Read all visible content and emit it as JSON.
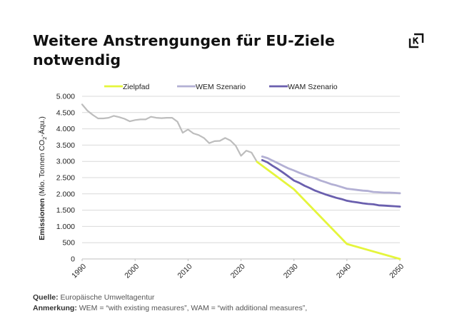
{
  "title": {
    "line1": "Weitere Anstrengungen für EU-Ziele",
    "line2": "notwendig"
  },
  "logo_icon": "k-bracket-logo-icon",
  "footer": {
    "source_label": "Quelle:",
    "source_text": "Europäische Umweltagentur",
    "note_label": "Anmerkung:",
    "note_text": "WEM = “with existing measures”, WAM = “with additional measures”,"
  },
  "colors": {
    "historical": "#bdbdbd",
    "zielpfad": "#e5f53c",
    "wem": "#b3b0d4",
    "wam": "#6a5fae",
    "grid": "#d9d9d9"
  },
  "chart_data": {
    "type": "line",
    "title": "Weitere Anstrengungen für EU-Ziele notwendig",
    "ylabel_bold": "Emissionen",
    "ylabel_rest": "(Mio. Tonnen CO",
    "ylabel_sub": "2",
    "ylabel_end": "-Äqu.)",
    "xlabel": "",
    "ylim": [
      0,
      5000
    ],
    "xlim": [
      1990,
      2050
    ],
    "yticks": [
      0,
      500,
      1000,
      1500,
      2000,
      2500,
      3000,
      3500,
      4000,
      4500,
      5000
    ],
    "ytick_labels": [
      "0",
      "500",
      "1.000",
      "1.500",
      "2.000",
      "2.500",
      "3.000",
      "3.500",
      "4.000",
      "4.500",
      "5.000"
    ],
    "xticks": [
      1990,
      2000,
      2010,
      2020,
      2030,
      2040,
      2050
    ],
    "xtick_labels": [
      "1990",
      "2000",
      "2010",
      "2020",
      "2030",
      "2040",
      "2050"
    ],
    "grid": true,
    "legend_position": "top",
    "legend": [
      "Zielpfad",
      "WEM Szenario",
      "WAM Szenario"
    ],
    "series": [
      {
        "name": "Historisch",
        "in_legend": false,
        "x": [
          1990,
          1991,
          1992,
          1993,
          1994,
          1995,
          1996,
          1997,
          1998,
          1999,
          2000,
          2001,
          2002,
          2003,
          2004,
          2005,
          2006,
          2007,
          2008,
          2009,
          2010,
          2011,
          2012,
          2013,
          2014,
          2015,
          2016,
          2017,
          2018,
          2019,
          2020,
          2021,
          2022,
          2023
        ],
        "values": [
          4750,
          4560,
          4430,
          4320,
          4320,
          4340,
          4400,
          4360,
          4310,
          4230,
          4270,
          4290,
          4290,
          4370,
          4340,
          4330,
          4340,
          4340,
          4220,
          3880,
          3980,
          3860,
          3810,
          3720,
          3560,
          3620,
          3630,
          3720,
          3640,
          3480,
          3170,
          3330,
          3270,
          2990
        ]
      },
      {
        "name": "Zielpfad",
        "in_legend": true,
        "x": [
          2023,
          2030,
          2040,
          2050
        ],
        "values": [
          2990,
          2140,
          460,
          0
        ]
      },
      {
        "name": "WEM Szenario",
        "in_legend": true,
        "x": [
          2024,
          2025,
          2026,
          2027,
          2028,
          2029,
          2030,
          2031,
          2032,
          2033,
          2034,
          2035,
          2036,
          2037,
          2038,
          2039,
          2040,
          2041,
          2042,
          2043,
          2044,
          2045,
          2046,
          2047,
          2048,
          2049,
          2050
        ],
        "values": [
          3150,
          3100,
          3020,
          2940,
          2860,
          2780,
          2720,
          2650,
          2590,
          2530,
          2480,
          2410,
          2360,
          2300,
          2260,
          2210,
          2160,
          2140,
          2120,
          2100,
          2090,
          2060,
          2050,
          2040,
          2040,
          2030,
          2020
        ]
      },
      {
        "name": "WAM Szenario",
        "in_legend": true,
        "x": [
          2024,
          2025,
          2026,
          2027,
          2028,
          2029,
          2030,
          2031,
          2032,
          2033,
          2034,
          2035,
          2036,
          2037,
          2038,
          2039,
          2040,
          2041,
          2042,
          2043,
          2044,
          2045,
          2046,
          2047,
          2048,
          2049,
          2050
        ],
        "values": [
          3040,
          2970,
          2860,
          2760,
          2650,
          2530,
          2410,
          2340,
          2250,
          2180,
          2100,
          2040,
          1980,
          1930,
          1880,
          1840,
          1790,
          1760,
          1740,
          1710,
          1690,
          1680,
          1650,
          1640,
          1630,
          1620,
          1610
        ]
      }
    ]
  }
}
